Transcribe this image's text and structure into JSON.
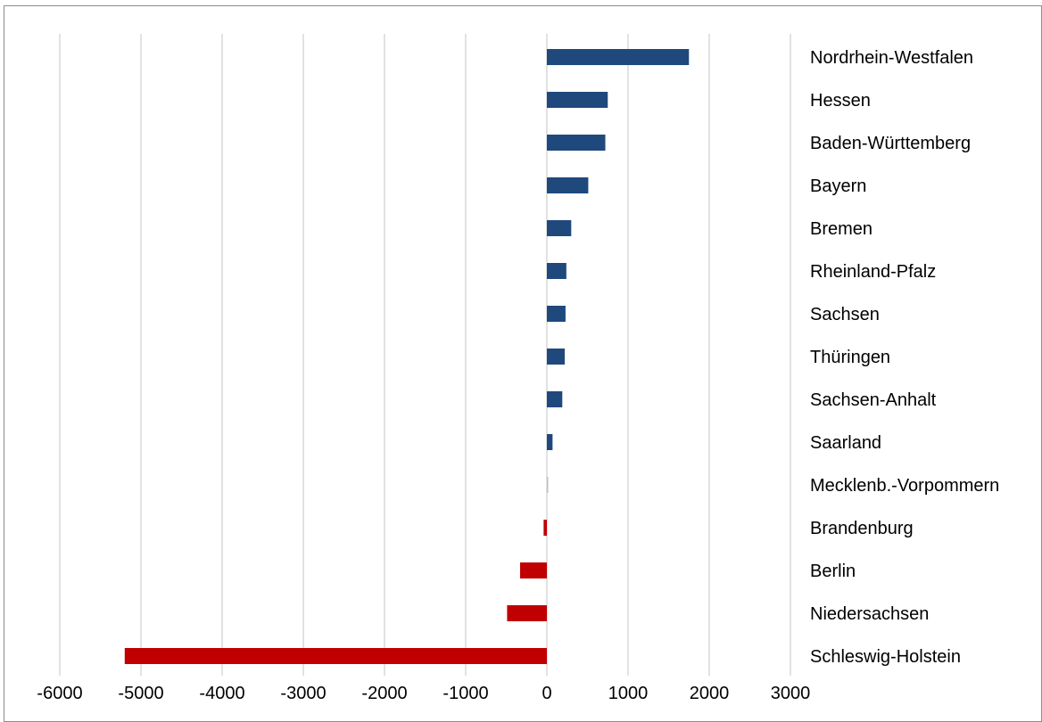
{
  "chart_data": {
    "type": "bar",
    "orientation": "horizontal",
    "categories": [
      "Nordrhein-Westfalen",
      "Hessen",
      "Baden-Württemberg",
      "Bayern",
      "Bremen",
      "Rheinland-Pfalz",
      "Sachsen",
      "Thüringen",
      "Sachsen-Anhalt",
      "Saarland",
      "Mecklenb.-Vorpommern",
      "Brandenburg",
      "Berlin",
      "Niedersachsen",
      "Schleswig-Holstein"
    ],
    "values": [
      1750,
      750,
      720,
      510,
      300,
      240,
      230,
      220,
      190,
      70,
      10,
      -40,
      -330,
      -490,
      -5200
    ],
    "xlim": [
      -6000,
      3000
    ],
    "xticks": [
      -6000,
      -5000,
      -4000,
      -3000,
      -2000,
      -1000,
      0,
      1000,
      2000,
      3000
    ],
    "xtick_labels": [
      "-6000",
      "-5000",
      "-4000",
      "-3000",
      "-2000",
      "-1000",
      "0",
      "1000",
      "2000",
      "3000"
    ],
    "grid": "vertical",
    "legend": "none",
    "colors": {
      "positive": "#1f497d",
      "negative": "#c00000",
      "near_zero": "#c0c0c0",
      "grid": "#d9d9d9"
    }
  }
}
